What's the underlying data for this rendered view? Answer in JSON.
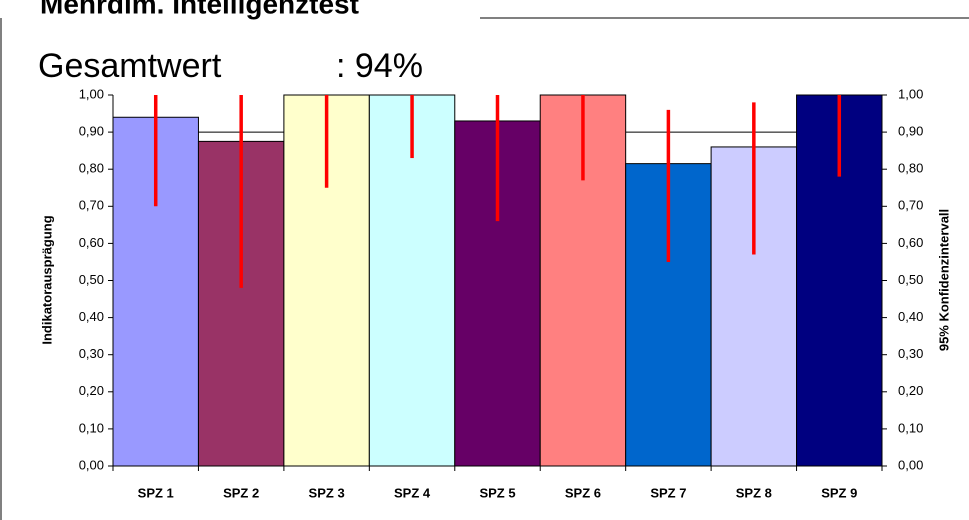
{
  "chart_data": {
    "type": "bar",
    "title": "Mehrdim. Intelligenztest",
    "summary": {
      "label": "Gesamtwert",
      "value": 94,
      "value_label": ": 94%"
    },
    "ylabel": "Indikatorausprägung",
    "y2label": "95% Konfidenzintervall",
    "categories": [
      "SPZ 1",
      "SPZ 2",
      "SPZ 3",
      "SPZ 4",
      "SPZ 5",
      "SPZ 6",
      "SPZ 7",
      "SPZ 8",
      "SPZ 9"
    ],
    "values": [
      0.94,
      0.875,
      1.0,
      1.0,
      0.93,
      1.0,
      0.815,
      0.86,
      1.0
    ],
    "colors": [
      "#9999ff",
      "#993366",
      "#ffffcc",
      "#ccffff",
      "#660066",
      "#ff8080",
      "#0066cc",
      "#ccccff",
      "#000080"
    ],
    "ci_low": [
      0.7,
      0.48,
      0.75,
      0.83,
      0.66,
      0.77,
      0.55,
      0.57,
      0.78
    ],
    "ci_high": [
      1.0,
      1.0,
      1.0,
      1.0,
      1.0,
      1.0,
      0.96,
      0.98,
      1.0
    ],
    "ci_color": "#ff0000",
    "reference_line": 0.9,
    "ylim": [
      0,
      1
    ],
    "yticks": [
      {
        "value": 0,
        "label": "0,00"
      },
      {
        "value": 0.1,
        "label": "0,10"
      },
      {
        "value": 0.2,
        "label": "0,20"
      },
      {
        "value": 0.3,
        "label": "0,30"
      },
      {
        "value": 0.4,
        "label": "0,40"
      },
      {
        "value": 0.5,
        "label": "0,50"
      },
      {
        "value": 0.6,
        "label": "0,60"
      },
      {
        "value": 0.7,
        "label": "0,70"
      },
      {
        "value": 0.8,
        "label": "0,80"
      },
      {
        "value": 0.9,
        "label": "0,90"
      },
      {
        "value": 1,
        "label": "1,00"
      }
    ],
    "y2lim": [
      0,
      1
    ],
    "y2ticks": [
      {
        "value": 0,
        "label": "0,00"
      },
      {
        "value": 0.1,
        "label": "0,10"
      },
      {
        "value": 0.2,
        "label": "0,20"
      },
      {
        "value": 0.3,
        "label": "0,30"
      },
      {
        "value": 0.4,
        "label": "0,40"
      },
      {
        "value": 0.5,
        "label": "0,50"
      },
      {
        "value": 0.6,
        "label": "0,60"
      },
      {
        "value": 0.7,
        "label": "0,70"
      },
      {
        "value": 0.8,
        "label": "0,80"
      },
      {
        "value": 0.9,
        "label": "0,90"
      },
      {
        "value": 1,
        "label": "1,00"
      }
    ]
  }
}
